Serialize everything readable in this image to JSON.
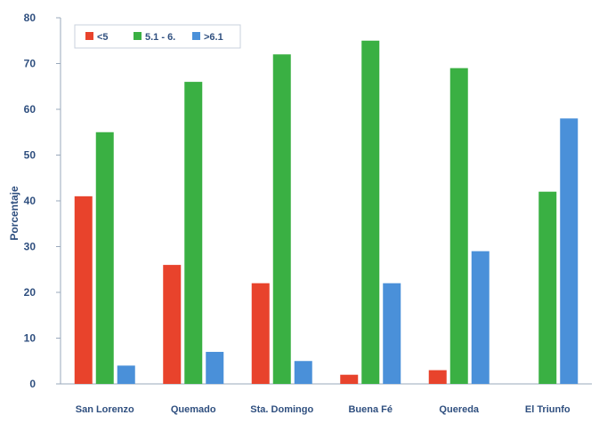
{
  "chart_data": {
    "type": "bar",
    "categories": [
      "San Lorenzo",
      "Quemado",
      "Sta. Domingo",
      "Buena Fé",
      "Quereda",
      "El Triunfo"
    ],
    "series": [
      {
        "name": "<5",
        "color": "#e8432c",
        "values": [
          41,
          26,
          22,
          2,
          3,
          0
        ]
      },
      {
        "name": "5.1 - 6.",
        "color": "#3ab043",
        "values": [
          55,
          66,
          72,
          75,
          69,
          42
        ]
      },
      {
        "name": ">6.1",
        "color": "#4a90d9",
        "values": [
          4,
          7,
          5,
          22,
          29,
          58
        ]
      }
    ],
    "ylabel": "Porcentaje",
    "ylim": [
      0,
      80
    ],
    "yticks": [
      "0",
      "10",
      "20",
      "30",
      "40",
      "50",
      "60",
      "70",
      "80"
    ],
    "grid": false,
    "legend_position": "top-left"
  }
}
